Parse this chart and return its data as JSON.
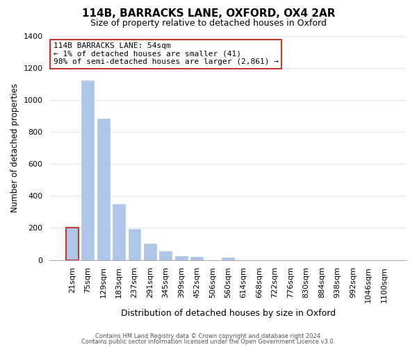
{
  "title": "114B, BARRACKS LANE, OXFORD, OX4 2AR",
  "subtitle": "Size of property relative to detached houses in Oxford",
  "xlabel": "Distribution of detached houses by size in Oxford",
  "ylabel": "Number of detached properties",
  "bar_labels": [
    "21sqm",
    "75sqm",
    "129sqm",
    "183sqm",
    "237sqm",
    "291sqm",
    "345sqm",
    "399sqm",
    "452sqm",
    "506sqm",
    "560sqm",
    "614sqm",
    "668sqm",
    "722sqm",
    "776sqm",
    "830sqm",
    "884sqm",
    "938sqm",
    "992sqm",
    "1046sqm",
    "1100sqm"
  ],
  "bar_heights": [
    200,
    1120,
    880,
    350,
    195,
    100,
    55,
    25,
    20,
    0,
    15,
    0,
    0,
    0,
    0,
    0,
    0,
    0,
    0,
    0,
    0
  ],
  "highlight_bar_index": 0,
  "bar_color": "#aec6e8",
  "highlight_bar_facecolor": "#aec6e8",
  "highlight_bar_edgecolor": "#c0392b",
  "annotation_text": "114B BARRACKS LANE: 54sqm\n← 1% of detached houses are smaller (41)\n98% of semi-detached houses are larger (2,861) →",
  "annotation_box_facecolor": "#ffffff",
  "annotation_box_edgecolor": "#c0392b",
  "ylim": [
    0,
    1400
  ],
  "yticks": [
    0,
    200,
    400,
    600,
    800,
    1000,
    1200,
    1400
  ],
  "footer_line1": "Contains HM Land Registry data © Crown copyright and database right 2024.",
  "footer_line2": "Contains public sector information licensed under the Open Government Licence v3.0.",
  "background_color": "#ffffff",
  "grid_color": "#dce8f0",
  "title_fontsize": 11,
  "subtitle_fontsize": 9,
  "ylabel_fontsize": 8.5,
  "xlabel_fontsize": 9,
  "tick_fontsize": 8,
  "annotation_fontsize": 8,
  "footer_fontsize": 6
}
